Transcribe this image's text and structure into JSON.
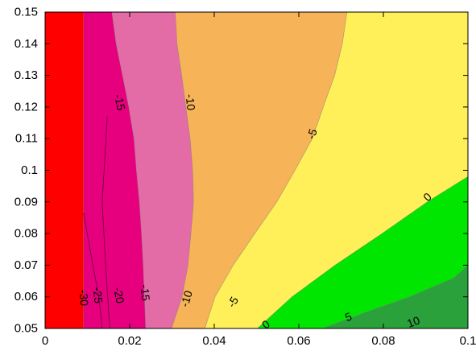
{
  "chart_data": {
    "type": "contour",
    "title": "",
    "xlabel": "",
    "ylabel": "",
    "xlim": [
      0,
      0.1
    ],
    "ylim": [
      0.05,
      0.15
    ],
    "xticks": [
      0,
      0.02,
      0.04,
      0.06,
      0.08,
      0.1
    ],
    "xtick_labels": [
      "0",
      "0.02",
      "0.04",
      "0.06",
      "0.08",
      "0.1"
    ],
    "yticks": [
      0.05,
      0.06,
      0.07,
      0.08,
      0.09,
      0.1,
      0.11,
      0.12,
      0.13,
      0.14,
      0.15
    ],
    "ytick_labels": [
      "0.05",
      "0.06",
      "0.07",
      "0.08",
      "0.09",
      "0.1",
      "0.11",
      "0.12",
      "0.13",
      "0.14",
      "0.15"
    ],
    "grid": false,
    "levels": [
      -30,
      -25,
      -20,
      -15,
      -10,
      -5,
      0,
      5,
      10
    ],
    "bands": [
      {
        "range": "< -30",
        "color": "#ff0000",
        "polygon": [
          [
            0,
            0.05
          ],
          [
            0.0091,
            0.05
          ],
          [
            0.0091,
            0.15
          ],
          [
            0,
            0.15
          ]
        ]
      },
      {
        "range": "-30 to -15",
        "color": "#e6007e",
        "polygon": [
          [
            0.0091,
            0.05
          ],
          [
            0.0238,
            0.05
          ],
          [
            0.0235,
            0.06
          ],
          [
            0.0232,
            0.07
          ],
          [
            0.0228,
            0.08
          ],
          [
            0.0223,
            0.09
          ],
          [
            0.0216,
            0.1
          ],
          [
            0.021,
            0.11
          ],
          [
            0.0198,
            0.12
          ],
          [
            0.0183,
            0.13
          ],
          [
            0.0168,
            0.14
          ],
          [
            0.0158,
            0.15
          ],
          [
            0.0091,
            0.15
          ]
        ]
      },
      {
        "range": "-15 to -10",
        "color": "#e46ca6",
        "polygon": [
          [
            0.0238,
            0.05
          ],
          [
            0.0299,
            0.05
          ],
          [
            0.0324,
            0.06
          ],
          [
            0.0338,
            0.07
          ],
          [
            0.0345,
            0.08
          ],
          [
            0.0351,
            0.09
          ],
          [
            0.0349,
            0.1
          ],
          [
            0.0343,
            0.11
          ],
          [
            0.0333,
            0.12
          ],
          [
            0.0323,
            0.13
          ],
          [
            0.0312,
            0.14
          ],
          [
            0.0308,
            0.15
          ],
          [
            0.0158,
            0.15
          ],
          [
            0.0168,
            0.14
          ],
          [
            0.0183,
            0.13
          ],
          [
            0.0198,
            0.12
          ],
          [
            0.021,
            0.11
          ],
          [
            0.0216,
            0.1
          ],
          [
            0.0223,
            0.09
          ],
          [
            0.0228,
            0.08
          ],
          [
            0.0232,
            0.07
          ],
          [
            0.0235,
            0.06
          ]
        ]
      },
      {
        "range": "-10 to -5",
        "color": "#f7b357",
        "polygon": [
          [
            0.0299,
            0.05
          ],
          [
            0.0378,
            0.05
          ],
          [
            0.0402,
            0.06
          ],
          [
            0.0445,
            0.07
          ],
          [
            0.0496,
            0.08
          ],
          [
            0.0548,
            0.09
          ],
          [
            0.0591,
            0.1
          ],
          [
            0.0632,
            0.11
          ],
          [
            0.0658,
            0.12
          ],
          [
            0.0685,
            0.13
          ],
          [
            0.0703,
            0.14
          ],
          [
            0.0714,
            0.15
          ],
          [
            0.0308,
            0.15
          ],
          [
            0.0312,
            0.14
          ],
          [
            0.0323,
            0.13
          ],
          [
            0.0333,
            0.12
          ],
          [
            0.0343,
            0.11
          ],
          [
            0.0349,
            0.1
          ],
          [
            0.0351,
            0.09
          ],
          [
            0.0345,
            0.08
          ],
          [
            0.0338,
            0.07
          ],
          [
            0.0324,
            0.06
          ]
        ]
      },
      {
        "range": "-5 to 0",
        "color": "#fff05a",
        "polygon": [
          [
            0.0378,
            0.05
          ],
          [
            0.0502,
            0.05
          ],
          [
            0.0584,
            0.06
          ],
          [
            0.0686,
            0.07
          ],
          [
            0.0797,
            0.08
          ],
          [
            0.0904,
            0.09
          ],
          [
            0.1,
            0.098
          ],
          [
            0.1,
            0.15
          ],
          [
            0.0714,
            0.15
          ],
          [
            0.0703,
            0.14
          ],
          [
            0.0685,
            0.13
          ],
          [
            0.0658,
            0.12
          ],
          [
            0.0632,
            0.11
          ],
          [
            0.0591,
            0.1
          ],
          [
            0.0548,
            0.09
          ],
          [
            0.0496,
            0.08
          ],
          [
            0.0445,
            0.07
          ],
          [
            0.0402,
            0.06
          ]
        ]
      },
      {
        "range": "0 to 5",
        "color": "#00e600",
        "polygon": [
          [
            0.0502,
            0.05
          ],
          [
            0.0655,
            0.05
          ],
          [
            0.0756,
            0.055
          ],
          [
            0.0862,
            0.06
          ],
          [
            0.0967,
            0.066
          ],
          [
            0.1,
            0.07
          ],
          [
            0.1,
            0.098
          ],
          [
            0.0904,
            0.09
          ],
          [
            0.0797,
            0.08
          ],
          [
            0.0686,
            0.07
          ],
          [
            0.0584,
            0.06
          ]
        ]
      },
      {
        "range": "> 5",
        "color": "#2aa13a",
        "polygon": [
          [
            0.0655,
            0.05
          ],
          [
            0.1,
            0.05
          ],
          [
            0.1,
            0.07
          ],
          [
            0.0967,
            0.066
          ],
          [
            0.0862,
            0.06
          ],
          [
            0.0756,
            0.055
          ]
        ]
      }
    ],
    "contour_lines": [
      {
        "level": -25,
        "points": [
          [
            0.0091,
            0.0865
          ],
          [
            0.0113,
            0.07
          ],
          [
            0.0127,
            0.06
          ],
          [
            0.0135,
            0.05
          ]
        ]
      },
      {
        "level": -20,
        "points": [
          [
            0.0147,
            0.117
          ],
          [
            0.0135,
            0.09
          ],
          [
            0.0143,
            0.07
          ],
          [
            0.0153,
            0.05
          ]
        ]
      }
    ],
    "annotations": [
      {
        "text": "-15",
        "x": 0.0177,
        "y": 0.1215,
        "angle": 78
      },
      {
        "text": "-10",
        "x": 0.0344,
        "y": 0.1215,
        "angle": 85
      },
      {
        "text": "-5",
        "x": 0.0631,
        "y": 0.1115,
        "angle": -70
      },
      {
        "text": "0",
        "x": 0.0904,
        "y": 0.0916,
        "angle": -43
      },
      {
        "text": "-30",
        "x": 0.0092,
        "y": 0.0597,
        "angle": 86
      },
      {
        "text": "-25",
        "x": 0.0125,
        "y": 0.0605,
        "angle": 85
      },
      {
        "text": "-20",
        "x": 0.0175,
        "y": 0.0605,
        "angle": 80
      },
      {
        "text": "-15",
        "x": 0.0237,
        "y": 0.0613,
        "angle": 85
      },
      {
        "text": "-10",
        "x": 0.0334,
        "y": 0.0594,
        "angle": -73
      },
      {
        "text": "-5",
        "x": 0.0444,
        "y": 0.0584,
        "angle": -60
      },
      {
        "text": "0",
        "x": 0.0522,
        "y": 0.0513,
        "angle": -37
      },
      {
        "text": "5",
        "x": 0.0717,
        "y": 0.0537,
        "angle": -20
      },
      {
        "text": "10",
        "x": 0.0871,
        "y": 0.0521,
        "angle": -20
      }
    ]
  }
}
